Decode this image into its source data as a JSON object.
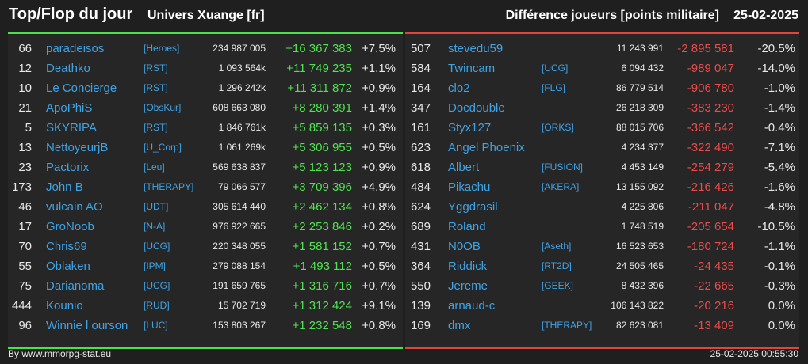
{
  "header": {
    "title": "Top/Flop du jour",
    "universe": "Univers Xuange [fr]",
    "subtitle": "Différence joueurs [points militaire]",
    "date": "25-02-2025"
  },
  "colors": {
    "positive": "#4fe34f",
    "negative": "#ef4a4a",
    "name": "#3fa3e6",
    "top_bar": "#4de04d",
    "flop_bar": "#e0443a"
  },
  "top": [
    {
      "rank": "66",
      "name": "paradeisos",
      "alliance": "[Heroes]",
      "points": "234 987 005",
      "diff": "+16 367 383",
      "pct": "+7.5%"
    },
    {
      "rank": "12",
      "name": "Deathko",
      "alliance": "[RST]",
      "points": "1 093 564k",
      "diff": "+11 749 235",
      "pct": "+1.1%"
    },
    {
      "rank": "10",
      "name": "Le Concierge",
      "alliance": "[RST]",
      "points": "1 296 242k",
      "diff": "+11 311 872",
      "pct": "+0.9%"
    },
    {
      "rank": "21",
      "name": "ApoPhiS",
      "alliance": "[ObsKur]",
      "points": "608 663 080",
      "diff": "+8 280 391",
      "pct": "+1.4%"
    },
    {
      "rank": "5",
      "name": "SKYRIPA",
      "alliance": "[RST]",
      "points": "1 846 761k",
      "diff": "+5 859 135",
      "pct": "+0.3%"
    },
    {
      "rank": "13",
      "name": "NettoyeurjB",
      "alliance": "[U_Corp]",
      "points": "1 061 269k",
      "diff": "+5 306 955",
      "pct": "+0.5%"
    },
    {
      "rank": "23",
      "name": "Pactorix",
      "alliance": "[Leu]",
      "points": "569 638 837",
      "diff": "+5 123 123",
      "pct": "+0.9%"
    },
    {
      "rank": "173",
      "name": "John B",
      "alliance": "[THERAPY]",
      "points": "79 066 577",
      "diff": "+3 709 396",
      "pct": "+4.9%"
    },
    {
      "rank": "46",
      "name": "vulcain AO",
      "alliance": "[UDT]",
      "points": "305 614 440",
      "diff": "+2 462 134",
      "pct": "+0.8%"
    },
    {
      "rank": "17",
      "name": "GroNoob",
      "alliance": "[N-A]",
      "points": "976 922 665",
      "diff": "+2 253 846",
      "pct": "+0.2%"
    },
    {
      "rank": "70",
      "name": "Chris69",
      "alliance": "[UCG]",
      "points": "220 348 055",
      "diff": "+1 581 152",
      "pct": "+0.7%"
    },
    {
      "rank": "55",
      "name": "Oblaken",
      "alliance": "[IPM]",
      "points": "279 088 154",
      "diff": "+1 493 112",
      "pct": "+0.5%"
    },
    {
      "rank": "75",
      "name": "Darianoma",
      "alliance": "[UCG]",
      "points": "191 659 765",
      "diff": "+1 316 716",
      "pct": "+0.7%"
    },
    {
      "rank": "444",
      "name": "Kounio",
      "alliance": "[RUD]",
      "points": "15 702 719",
      "diff": "+1 312 424",
      "pct": "+9.1%"
    },
    {
      "rank": "96",
      "name": "Winnie l ourson",
      "alliance": "[LUC]",
      "points": "153 803 267",
      "diff": "+1 232 548",
      "pct": "+0.8%"
    }
  ],
  "flop": [
    {
      "rank": "507",
      "name": "stevedu59",
      "alliance": "",
      "points": "11 243 991",
      "diff": "-2 895 581",
      "pct": "-20.5%"
    },
    {
      "rank": "584",
      "name": "Twincam",
      "alliance": "[UCG]",
      "points": "6 094 432",
      "diff": "-989 047",
      "pct": "-14.0%"
    },
    {
      "rank": "164",
      "name": "clo2",
      "alliance": "[FLG]",
      "points": "86 779 514",
      "diff": "-906 780",
      "pct": "-1.0%"
    },
    {
      "rank": "347",
      "name": "Docdouble",
      "alliance": "",
      "points": "26 218 309",
      "diff": "-383 230",
      "pct": "-1.4%"
    },
    {
      "rank": "161",
      "name": "Styx127",
      "alliance": "[ORKS]",
      "points": "88 015 706",
      "diff": "-366 542",
      "pct": "-0.4%"
    },
    {
      "rank": "623",
      "name": "Angel Phoenix",
      "alliance": "",
      "points": "4 234 377",
      "diff": "-322 490",
      "pct": "-7.1%"
    },
    {
      "rank": "618",
      "name": "Albert",
      "alliance": "[FUSION]",
      "points": "4 453 149",
      "diff": "-254 279",
      "pct": "-5.4%"
    },
    {
      "rank": "484",
      "name": "Pikachu",
      "alliance": "[AKERA]",
      "points": "13 155 092",
      "diff": "-216 426",
      "pct": "-1.6%"
    },
    {
      "rank": "624",
      "name": "Yggdrasil",
      "alliance": "",
      "points": "4 225 806",
      "diff": "-211 047",
      "pct": "-4.8%"
    },
    {
      "rank": "689",
      "name": "Roland",
      "alliance": "",
      "points": "1 748 519",
      "diff": "-205 654",
      "pct": "-10.5%"
    },
    {
      "rank": "431",
      "name": "N0OB",
      "alliance": "[Aseth]",
      "points": "16 523 653",
      "diff": "-180 724",
      "pct": "-1.1%"
    },
    {
      "rank": "364",
      "name": "Riddick",
      "alliance": "[RT2D]",
      "points": "24 505 465",
      "diff": "-24 435",
      "pct": "-0.1%"
    },
    {
      "rank": "550",
      "name": "Jereme",
      "alliance": "[GEEK]",
      "points": "8 432 396",
      "diff": "-22 665",
      "pct": "-0.3%"
    },
    {
      "rank": "139",
      "name": "arnaud-c",
      "alliance": "",
      "points": "106 143 822",
      "diff": "-20 216",
      "pct": "0.0%"
    },
    {
      "rank": "169",
      "name": "dmx",
      "alliance": "[THERAPY]",
      "points": "82 623 081",
      "diff": "-13 409",
      "pct": "0.0%"
    }
  ],
  "footer": {
    "source": "By www.mmorpg-stat.eu",
    "timestamp": "25-02-2025 00:55:30"
  }
}
